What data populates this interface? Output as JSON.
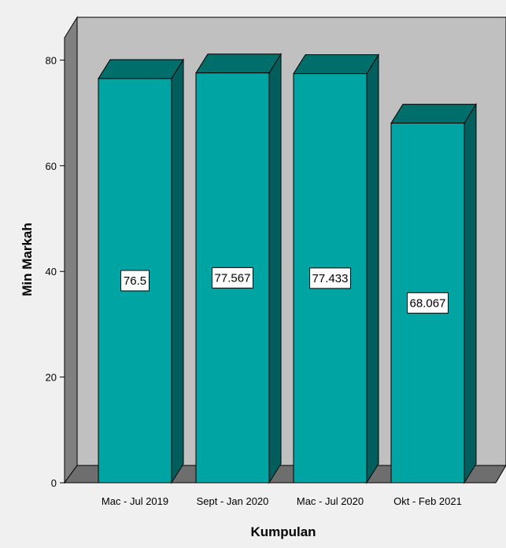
{
  "chart_data": {
    "type": "bar",
    "categories": [
      "Mac - Jul 2019",
      "Sept - Jan 2020",
      "Mac - Jul 2020",
      "Okt - Feb 2021"
    ],
    "values": [
      76.5,
      77.567,
      77.433,
      68.067
    ],
    "data_labels": [
      "76.5",
      "77.567",
      "77.433",
      "68.067"
    ],
    "xlabel": "Kumpulan",
    "ylabel": "Min Markah",
    "ylim": [
      0,
      80
    ],
    "yticks": [
      0,
      20,
      40,
      60,
      80
    ],
    "style": "3d",
    "grid": false,
    "legend": "none",
    "colors": {
      "bar_front": "#00a5a3",
      "bar_side": "#005f5d",
      "bar_top": "#006f6b",
      "plot_back": "#c0c0c0",
      "plot_floor": "#6e6e6e",
      "plot_wall": "#808080",
      "background": "#f0f0f0"
    }
  }
}
